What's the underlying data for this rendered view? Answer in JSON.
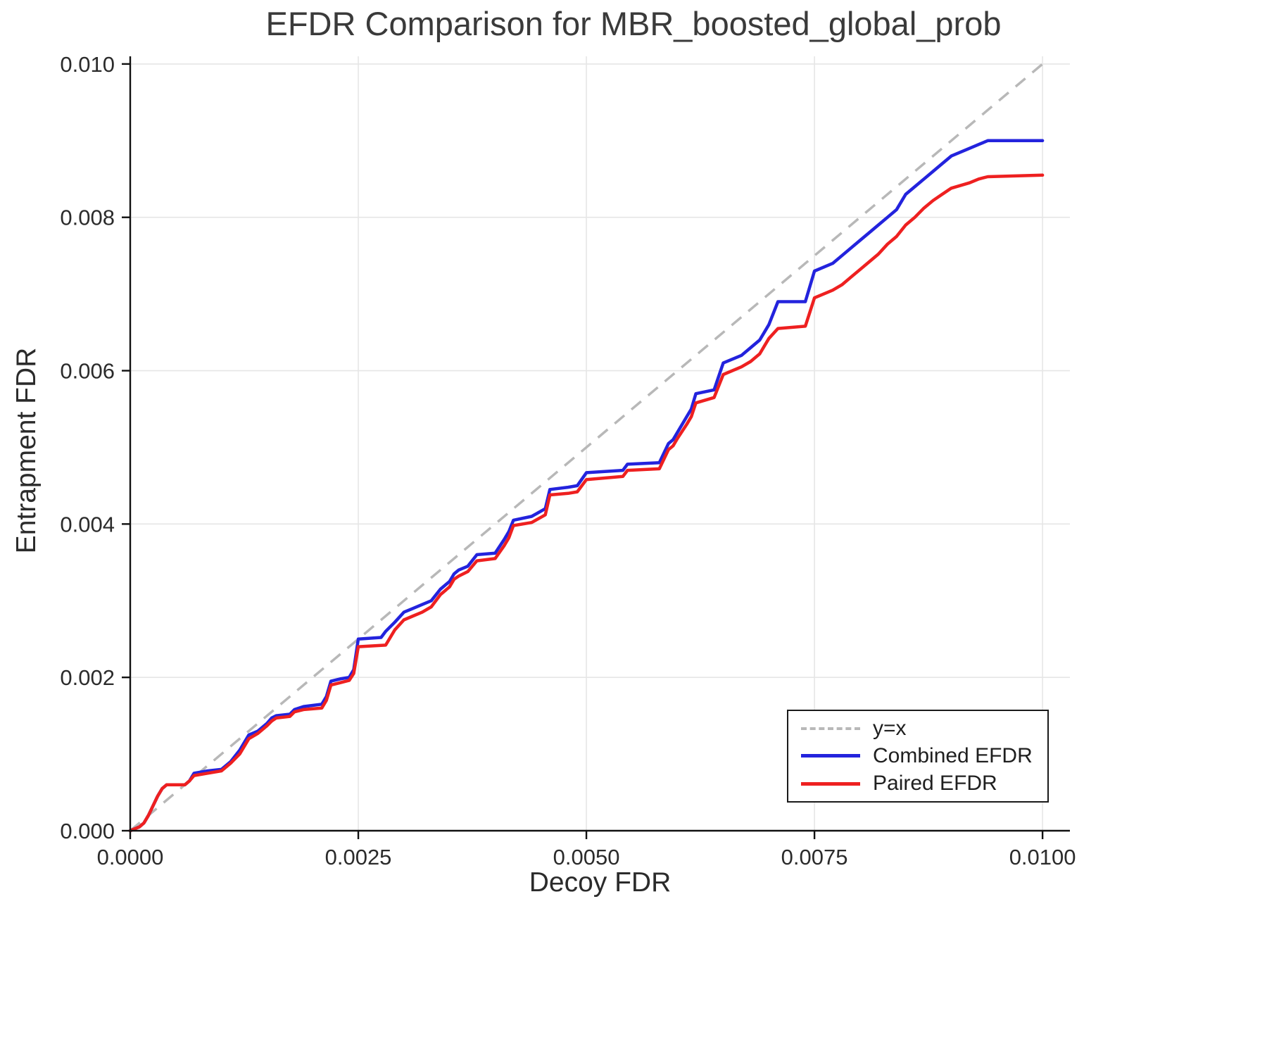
{
  "chart_data": {
    "type": "line",
    "title": "EFDR Comparison for MBR_boosted_global_prob",
    "xlabel": "Decoy FDR",
    "ylabel": "Entrapment FDR",
    "xlim": [
      0,
      0.0103
    ],
    "ylim": [
      0,
      0.0101
    ],
    "grid": true,
    "legend_position": "bottom-right",
    "xticks": {
      "values": [
        0,
        0.0025,
        0.005,
        0.0075,
        0.01
      ],
      "labels": [
        "0.0000",
        "0.0025",
        "0.0050",
        "0.0075",
        "0.0100"
      ]
    },
    "yticks": {
      "values": [
        0,
        0.002,
        0.004,
        0.006,
        0.008,
        0.01
      ],
      "labels": [
        "0.000",
        "0.002",
        "0.004",
        "0.006",
        "0.008",
        "0.010"
      ]
    },
    "reference_line": {
      "label": "y=x",
      "color": "#b8b8b8",
      "style": "dashed",
      "from": [
        0,
        0
      ],
      "to": [
        0.01,
        0.01
      ]
    },
    "series": [
      {
        "name": "Combined EFDR",
        "color": "#2323dd",
        "style": "solid",
        "points": [
          [
            0.0,
            0.0
          ],
          [
            0.0001,
            5e-05
          ],
          [
            0.00015,
            0.0001
          ],
          [
            0.0002,
            0.0002
          ],
          [
            0.0003,
            0.00045
          ],
          [
            0.00035,
            0.00055
          ],
          [
            0.0004,
            0.0006
          ],
          [
            0.0006,
            0.0006
          ],
          [
            0.00065,
            0.00065
          ],
          [
            0.0007,
            0.00075
          ],
          [
            0.00085,
            0.00078
          ],
          [
            0.001,
            0.0008
          ],
          [
            0.0011,
            0.0009
          ],
          [
            0.0012,
            0.00105
          ],
          [
            0.00125,
            0.00115
          ],
          [
            0.0013,
            0.00125
          ],
          [
            0.0014,
            0.0013
          ],
          [
            0.0015,
            0.0014
          ],
          [
            0.00155,
            0.00147
          ],
          [
            0.0016,
            0.0015
          ],
          [
            0.00175,
            0.00152
          ],
          [
            0.0018,
            0.00158
          ],
          [
            0.0019,
            0.00162
          ],
          [
            0.0021,
            0.00165
          ],
          [
            0.00215,
            0.00175
          ],
          [
            0.0022,
            0.00195
          ],
          [
            0.0023,
            0.00198
          ],
          [
            0.0024,
            0.002
          ],
          [
            0.00245,
            0.0021
          ],
          [
            0.0025,
            0.0025
          ],
          [
            0.00275,
            0.00252
          ],
          [
            0.0028,
            0.0026
          ],
          [
            0.0029,
            0.00272
          ],
          [
            0.003,
            0.00285
          ],
          [
            0.0031,
            0.0029
          ],
          [
            0.0032,
            0.00295
          ],
          [
            0.0033,
            0.003
          ],
          [
            0.0034,
            0.00315
          ],
          [
            0.0035,
            0.00325
          ],
          [
            0.00355,
            0.00335
          ],
          [
            0.0036,
            0.0034
          ],
          [
            0.0037,
            0.00345
          ],
          [
            0.0038,
            0.0036
          ],
          [
            0.004,
            0.00362
          ],
          [
            0.0041,
            0.0038
          ],
          [
            0.00415,
            0.0039
          ],
          [
            0.0042,
            0.00405
          ],
          [
            0.0044,
            0.0041
          ],
          [
            0.00455,
            0.0042
          ],
          [
            0.0046,
            0.00445
          ],
          [
            0.0048,
            0.00448
          ],
          [
            0.0049,
            0.0045
          ],
          [
            0.005,
            0.00467
          ],
          [
            0.0054,
            0.0047
          ],
          [
            0.00545,
            0.00478
          ],
          [
            0.0058,
            0.0048
          ],
          [
            0.0059,
            0.00505
          ],
          [
            0.00595,
            0.0051
          ],
          [
            0.006,
            0.0052
          ],
          [
            0.0061,
            0.0054
          ],
          [
            0.00615,
            0.0055
          ],
          [
            0.0062,
            0.0057
          ],
          [
            0.0064,
            0.00575
          ],
          [
            0.0065,
            0.0061
          ],
          [
            0.0067,
            0.0062
          ],
          [
            0.0068,
            0.0063
          ],
          [
            0.0069,
            0.0064
          ],
          [
            0.007,
            0.0066
          ],
          [
            0.0071,
            0.0069
          ],
          [
            0.0074,
            0.0069
          ],
          [
            0.0075,
            0.0073
          ],
          [
            0.0077,
            0.0074
          ],
          [
            0.0078,
            0.0075
          ],
          [
            0.0079,
            0.0076
          ],
          [
            0.008,
            0.0077
          ],
          [
            0.0081,
            0.0078
          ],
          [
            0.0082,
            0.0079
          ],
          [
            0.0083,
            0.008
          ],
          [
            0.0084,
            0.0081
          ],
          [
            0.0085,
            0.0083
          ],
          [
            0.0086,
            0.0084
          ],
          [
            0.0087,
            0.0085
          ],
          [
            0.0088,
            0.0086
          ],
          [
            0.0089,
            0.0087
          ],
          [
            0.009,
            0.0088
          ],
          [
            0.0092,
            0.0089
          ],
          [
            0.0093,
            0.00895
          ],
          [
            0.0094,
            0.009
          ],
          [
            0.01,
            0.009
          ]
        ]
      },
      {
        "name": "Paired EFDR",
        "color": "#ee2020",
        "style": "solid",
        "points": [
          [
            0.0,
            0.0
          ],
          [
            0.0001,
            5e-05
          ],
          [
            0.00015,
            0.0001
          ],
          [
            0.0002,
            0.0002
          ],
          [
            0.0003,
            0.00045
          ],
          [
            0.00035,
            0.00055
          ],
          [
            0.0004,
            0.0006
          ],
          [
            0.0006,
            0.0006
          ],
          [
            0.00065,
            0.00065
          ],
          [
            0.0007,
            0.00072
          ],
          [
            0.00085,
            0.00075
          ],
          [
            0.001,
            0.00078
          ],
          [
            0.0011,
            0.00088
          ],
          [
            0.0012,
            0.001
          ],
          [
            0.00125,
            0.0011
          ],
          [
            0.0013,
            0.0012
          ],
          [
            0.0014,
            0.00127
          ],
          [
            0.0015,
            0.00137
          ],
          [
            0.00155,
            0.00143
          ],
          [
            0.0016,
            0.00147
          ],
          [
            0.00175,
            0.00149
          ],
          [
            0.0018,
            0.00155
          ],
          [
            0.0019,
            0.00158
          ],
          [
            0.0021,
            0.0016
          ],
          [
            0.00215,
            0.0017
          ],
          [
            0.0022,
            0.0019
          ],
          [
            0.0023,
            0.00193
          ],
          [
            0.0024,
            0.00196
          ],
          [
            0.00245,
            0.00205
          ],
          [
            0.0025,
            0.0024
          ],
          [
            0.0028,
            0.00242
          ],
          [
            0.0029,
            0.00262
          ],
          [
            0.003,
            0.00275
          ],
          [
            0.0031,
            0.0028
          ],
          [
            0.0032,
            0.00285
          ],
          [
            0.0033,
            0.00292
          ],
          [
            0.0034,
            0.00308
          ],
          [
            0.0035,
            0.00318
          ],
          [
            0.00355,
            0.00328
          ],
          [
            0.0036,
            0.00332
          ],
          [
            0.0037,
            0.00338
          ],
          [
            0.0038,
            0.00352
          ],
          [
            0.004,
            0.00355
          ],
          [
            0.0041,
            0.00372
          ],
          [
            0.00415,
            0.00382
          ],
          [
            0.0042,
            0.00398
          ],
          [
            0.0044,
            0.00402
          ],
          [
            0.00455,
            0.00412
          ],
          [
            0.0046,
            0.00438
          ],
          [
            0.0048,
            0.0044
          ],
          [
            0.0049,
            0.00442
          ],
          [
            0.005,
            0.00458
          ],
          [
            0.0054,
            0.00462
          ],
          [
            0.00545,
            0.0047
          ],
          [
            0.0058,
            0.00472
          ],
          [
            0.0059,
            0.00497
          ],
          [
            0.00595,
            0.00502
          ],
          [
            0.006,
            0.00512
          ],
          [
            0.0061,
            0.0053
          ],
          [
            0.00615,
            0.0054
          ],
          [
            0.0062,
            0.00558
          ],
          [
            0.0064,
            0.00565
          ],
          [
            0.0065,
            0.00595
          ],
          [
            0.0067,
            0.00605
          ],
          [
            0.0068,
            0.00612
          ],
          [
            0.0069,
            0.00622
          ],
          [
            0.007,
            0.00642
          ],
          [
            0.0071,
            0.00655
          ],
          [
            0.0074,
            0.00658
          ],
          [
            0.0075,
            0.00695
          ],
          [
            0.0077,
            0.00705
          ],
          [
            0.0078,
            0.00712
          ],
          [
            0.0079,
            0.00722
          ],
          [
            0.008,
            0.00732
          ],
          [
            0.0081,
            0.00742
          ],
          [
            0.0082,
            0.00752
          ],
          [
            0.0083,
            0.00765
          ],
          [
            0.0084,
            0.00775
          ],
          [
            0.0085,
            0.0079
          ],
          [
            0.0086,
            0.008
          ],
          [
            0.0087,
            0.00812
          ],
          [
            0.0088,
            0.00822
          ],
          [
            0.0089,
            0.0083
          ],
          [
            0.009,
            0.00838
          ],
          [
            0.0092,
            0.00845
          ],
          [
            0.0093,
            0.0085
          ],
          [
            0.0094,
            0.00853
          ],
          [
            0.01,
            0.00855
          ]
        ]
      }
    ],
    "legend": {
      "entries": [
        {
          "label": "y=x",
          "color": "#b8b8b8",
          "style": "dashed"
        },
        {
          "label": "Combined EFDR",
          "color": "#2323dd",
          "style": "solid"
        },
        {
          "label": "Paired EFDR",
          "color": "#ee2020",
          "style": "solid"
        }
      ]
    },
    "colors": {
      "grid": "#e6e6e6",
      "spine": "#111111",
      "tick_label": "#2b2b2b",
      "title": "#3a3a3a"
    }
  }
}
